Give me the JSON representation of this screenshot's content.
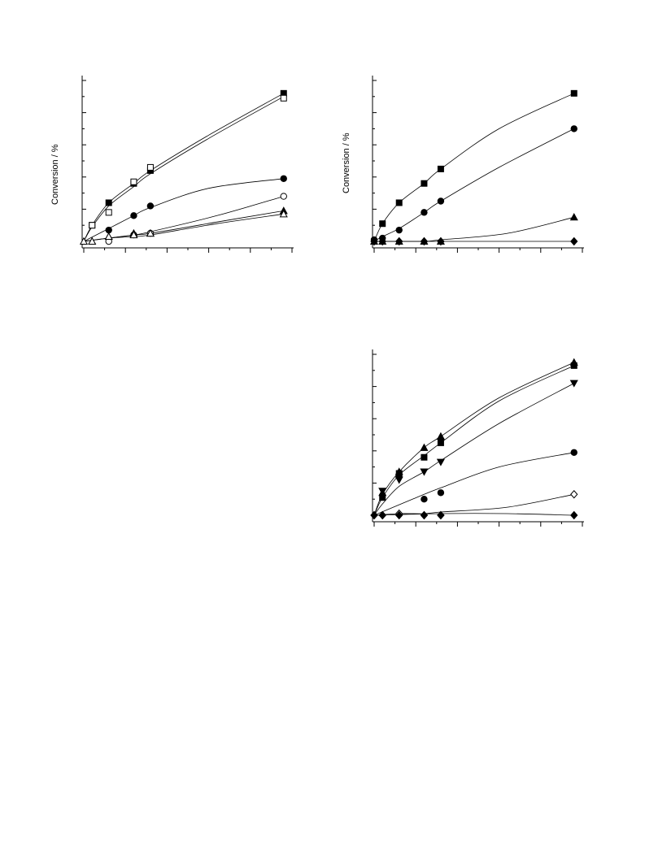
{
  "chart_data": [
    {
      "type": "scatter",
      "title": "",
      "ylabel": "Conversion  / %",
      "xlabel": "",
      "ylim": [
        0,
        100
      ],
      "xlim": [
        0,
        25
      ],
      "x_minor_ticks": 10,
      "y_minor_ticks": 10,
      "series": [
        {
          "marker": "square-filled",
          "x": [
            1,
            3,
            6,
            8,
            24
          ],
          "y": [
            10,
            24,
            36,
            44,
            92
          ],
          "fit": [
            [
              0,
              0
            ],
            [
              1,
              10
            ],
            [
              3,
              24
            ],
            [
              6,
              36
            ],
            [
              8,
              44
            ],
            [
              15,
              66
            ],
            [
              24,
              92
            ]
          ]
        },
        {
          "marker": "square-open",
          "x": [
            1,
            3,
            6,
            8,
            24
          ],
          "y": [
            10,
            18,
            37,
            46,
            89
          ],
          "fit": [
            [
              0,
              0
            ],
            [
              1,
              9
            ],
            [
              3,
              22
            ],
            [
              6,
              34
            ],
            [
              8,
              42
            ],
            [
              15,
              64
            ],
            [
              24,
              90
            ]
          ]
        },
        {
          "marker": "circle-filled",
          "x": [
            3,
            6,
            8,
            24
          ],
          "y": [
            7,
            16,
            22,
            39
          ],
          "fit": [
            [
              0,
              0
            ],
            [
              3,
              8
            ],
            [
              6,
              16
            ],
            [
              8,
              21
            ],
            [
              15,
              33
            ],
            [
              24,
              39
            ]
          ]
        },
        {
          "marker": "circle-open",
          "x": [
            3,
            6,
            8,
            24
          ],
          "y": [
            0,
            4,
            5,
            28
          ],
          "fit": [
            [
              0,
              0
            ],
            [
              3,
              2
            ],
            [
              6,
              4
            ],
            [
              8,
              6
            ],
            [
              16,
              16
            ],
            [
              24,
              28
            ]
          ]
        },
        {
          "marker": "triangle-filled",
          "x": [
            1,
            3,
            6,
            8,
            24
          ],
          "y": [
            0,
            3,
            5,
            5,
            19
          ],
          "fit": [
            [
              0,
              0
            ],
            [
              3,
              2
            ],
            [
              6,
              4
            ],
            [
              8,
              5
            ],
            [
              16,
              12
            ],
            [
              24,
              19
            ]
          ]
        },
        {
          "marker": "triangle-open",
          "x": [
            0,
            1,
            3,
            6,
            8,
            24
          ],
          "y": [
            0,
            0,
            3,
            4,
            5,
            17
          ],
          "fit": [
            [
              0,
              0
            ],
            [
              3,
              2
            ],
            [
              6,
              3
            ],
            [
              8,
              4
            ],
            [
              16,
              11
            ],
            [
              24,
              17
            ]
          ]
        }
      ]
    },
    {
      "type": "scatter",
      "title": "",
      "ylabel": "Conversion / %",
      "xlabel": "",
      "ylim": [
        0,
        100
      ],
      "xlim": [
        0,
        25
      ],
      "x_minor_ticks": 10,
      "y_minor_ticks": 10,
      "series": [
        {
          "marker": "square-filled",
          "x": [
            1,
            3,
            6,
            8,
            24
          ],
          "y": [
            11,
            24,
            36,
            45,
            92
          ],
          "fit": [
            [
              0,
              0
            ],
            [
              1,
              11
            ],
            [
              3,
              24
            ],
            [
              6,
              36
            ],
            [
              8,
              45
            ],
            [
              15,
              70
            ],
            [
              24,
              92
            ]
          ]
        },
        {
          "marker": "circle-filled",
          "x": [
            0,
            1,
            3,
            6,
            8,
            24
          ],
          "y": [
            1,
            2,
            7,
            18,
            25,
            70
          ],
          "fit": [
            [
              0,
              0
            ],
            [
              1,
              3
            ],
            [
              3,
              8
            ],
            [
              6,
              18
            ],
            [
              8,
              25
            ],
            [
              15,
              46
            ],
            [
              24,
              70
            ]
          ]
        },
        {
          "marker": "triangle-filled",
          "x": [
            0,
            1,
            3,
            6,
            8,
            24
          ],
          "y": [
            0,
            0,
            0,
            0,
            0,
            15
          ],
          "fit": [
            [
              0,
              0
            ],
            [
              6,
              0
            ],
            [
              8,
              1
            ],
            [
              16,
              5
            ],
            [
              24,
              15
            ]
          ]
        },
        {
          "marker": "diamond-filled",
          "x": [
            0,
            1,
            3,
            6,
            8,
            24
          ],
          "y": [
            0,
            0,
            0,
            0,
            0,
            0
          ],
          "fit": [
            [
              0,
              0
            ],
            [
              24,
              0
            ]
          ]
        }
      ]
    },
    {
      "type": "scatter",
      "title": "",
      "ylabel": "",
      "xlabel": "",
      "ylim": [
        0,
        100
      ],
      "xlim": [
        0,
        25
      ],
      "x_minor_ticks": 10,
      "y_minor_ticks": 10,
      "series": [
        {
          "marker": "triangle-filled",
          "x": [
            1,
            3,
            6,
            8,
            24
          ],
          "y": [
            14,
            27,
            42,
            49,
            95
          ],
          "fit": [
            [
              0,
              0
            ],
            [
              1,
              13
            ],
            [
              3,
              27
            ],
            [
              6,
              42
            ],
            [
              8,
              49
            ],
            [
              15,
              73
            ],
            [
              24,
              95
            ]
          ]
        },
        {
          "marker": "square-filled",
          "x": [
            1,
            3,
            6,
            8,
            24
          ],
          "y": [
            11,
            26,
            36,
            45,
            93
          ],
          "fit": [
            [
              0,
              0
            ],
            [
              1,
              11
            ],
            [
              3,
              25
            ],
            [
              6,
              37
            ],
            [
              8,
              45
            ],
            [
              15,
              71
            ],
            [
              24,
              93
            ]
          ]
        },
        {
          "marker": "triangle-down-filled",
          "x": [
            1,
            3,
            6,
            8,
            24
          ],
          "y": [
            15,
            22,
            27,
            33,
            82
          ],
          "fit": [
            [
              0,
              0
            ],
            [
              1,
              7
            ],
            [
              3,
              18
            ],
            [
              6,
              27
            ],
            [
              8,
              34
            ],
            [
              15,
              57
            ],
            [
              24,
              82
            ]
          ]
        },
        {
          "marker": "circle-filled",
          "x": [
            6,
            8,
            24
          ],
          "y": [
            10,
            14,
            39
          ],
          "fit": [
            [
              0,
              0
            ],
            [
              6,
              13
            ],
            [
              8,
              17
            ],
            [
              15,
              30
            ],
            [
              24,
              39
            ]
          ]
        },
        {
          "marker": "diamond-open",
          "x": [
            0,
            1,
            3,
            6,
            8,
            24
          ],
          "y": [
            0,
            0,
            1,
            0,
            0,
            13
          ],
          "fit": [
            [
              0,
              0
            ],
            [
              3,
              1
            ],
            [
              6,
              1
            ],
            [
              8,
              2
            ],
            [
              16,
              5
            ],
            [
              24,
              13
            ]
          ]
        },
        {
          "marker": "diamond-filled",
          "x": [
            0,
            1,
            3,
            6,
            8,
            24
          ],
          "y": [
            0,
            0,
            0,
            0,
            0,
            0
          ],
          "fit": [
            [
              0,
              0
            ],
            [
              8,
              1
            ],
            [
              16,
              1
            ],
            [
              24,
              0
            ]
          ]
        }
      ]
    }
  ]
}
